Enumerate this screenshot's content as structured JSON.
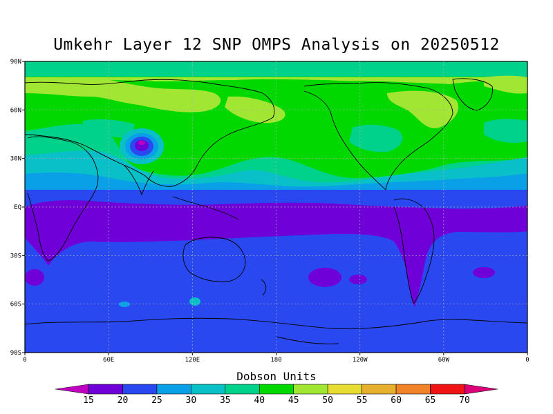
{
  "title": "Umkehr Layer 12 SNP OMPS Analysis on 20250512",
  "colorbar_title": "Dobson Units",
  "map": {
    "lat_ticks": [
      "90N",
      "60N",
      "30N",
      "EQ",
      "30S",
      "60S",
      "90S"
    ],
    "lon_ticks": [
      "0",
      "60E",
      "120E",
      "180",
      "120W",
      "60W",
      "0"
    ],
    "grid": true
  },
  "colorbar": {
    "levels": [
      "15",
      "20",
      "25",
      "30",
      "35",
      "40",
      "45",
      "50",
      "55",
      "60",
      "65",
      "70"
    ],
    "colors": [
      "#c000c0",
      "#7000d8",
      "#2a48f0",
      "#0aa0e8",
      "#0ac0c8",
      "#00d28c",
      "#00d800",
      "#a0e632",
      "#e6dc32",
      "#e6af2d",
      "#f08228",
      "#f01414",
      "#dc0078"
    ]
  }
}
